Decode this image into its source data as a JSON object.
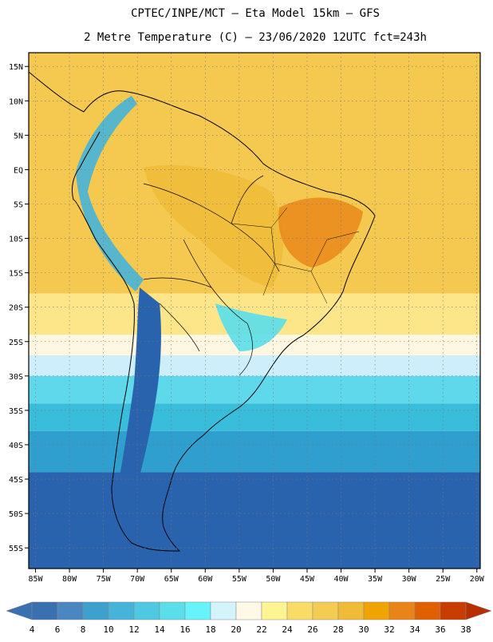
{
  "title_line1": "CPTEC/INPE/MCT —  Eta Model 15km — GFS",
  "title_line2": "2 Metre Temperature (C) — 23/06/2020 12UTC fct=243h",
  "map": {
    "lon_min": -86,
    "lon_max": -19.5,
    "lat_min": -58,
    "lat_max": 17,
    "lat_ticks": [
      {
        "lat": 15,
        "label": "15N"
      },
      {
        "lat": 10,
        "label": "10N"
      },
      {
        "lat": 5,
        "label": "5N"
      },
      {
        "lat": 0,
        "label": "EQ"
      },
      {
        "lat": -5,
        "label": "5S"
      },
      {
        "lat": -10,
        "label": "10S"
      },
      {
        "lat": -15,
        "label": "15S"
      },
      {
        "lat": -20,
        "label": "20S"
      },
      {
        "lat": -25,
        "label": "25S"
      },
      {
        "lat": -30,
        "label": "30S"
      },
      {
        "lat": -35,
        "label": "35S"
      },
      {
        "lat": -40,
        "label": "40S"
      },
      {
        "lat": -45,
        "label": "45S"
      },
      {
        "lat": -50,
        "label": "50S"
      },
      {
        "lat": -55,
        "label": "55S"
      }
    ],
    "lon_ticks": [
      {
        "lon": -85,
        "label": "85W"
      },
      {
        "lon": -80,
        "label": "80W"
      },
      {
        "lon": -75,
        "label": "75W"
      },
      {
        "lon": -70,
        "label": "70W"
      },
      {
        "lon": -65,
        "label": "65W"
      },
      {
        "lon": -60,
        "label": "60W"
      },
      {
        "lon": -55,
        "label": "55W"
      },
      {
        "lon": -50,
        "label": "50W"
      },
      {
        "lon": -45,
        "label": "45W"
      },
      {
        "lon": -40,
        "label": "40W"
      },
      {
        "lon": -35,
        "label": "35W"
      },
      {
        "lon": -30,
        "label": "30W"
      },
      {
        "lon": -25,
        "label": "25W"
      },
      {
        "lon": -20,
        "label": "20W"
      }
    ],
    "temperature_bands": [
      {
        "lat_from": 17,
        "lat_to": -18,
        "color": "#f5c850"
      },
      {
        "lat_from": -18,
        "lat_to": -24,
        "color": "#fde58a"
      },
      {
        "lat_from": -24,
        "lat_to": -27,
        "color": "#fff7e0"
      },
      {
        "lat_from": -27,
        "lat_to": -30,
        "color": "#cdeefa"
      },
      {
        "lat_from": -30,
        "lat_to": -34,
        "color": "#5ed8ea"
      },
      {
        "lat_from": -34,
        "lat_to": -38,
        "color": "#38bedb"
      },
      {
        "lat_from": -38,
        "lat_to": -44,
        "color": "#2f9fcf"
      },
      {
        "lat_from": -44,
        "lat_to": -58,
        "color": "#2a63ad"
      }
    ]
  },
  "colorbar": {
    "colors": [
      "#3a6fb0",
      "#4a86c0",
      "#3ea0cc",
      "#46b4d8",
      "#4fc8e2",
      "#5adeea",
      "#66f4fa",
      "#d4f4fc",
      "#fff8e6",
      "#fef592",
      "#f8dc66",
      "#f4cc52",
      "#f0bc38",
      "#f0a400",
      "#e88418",
      "#e06000",
      "#c83c00"
    ],
    "left_arrow_color": "#3a6fb0",
    "right_arrow_color": "#b82e00",
    "labels": [
      "4",
      "6",
      "8",
      "10",
      "12",
      "14",
      "16",
      "18",
      "20",
      "22",
      "24",
      "26",
      "28",
      "30",
      "32",
      "34",
      "36",
      "38"
    ]
  }
}
